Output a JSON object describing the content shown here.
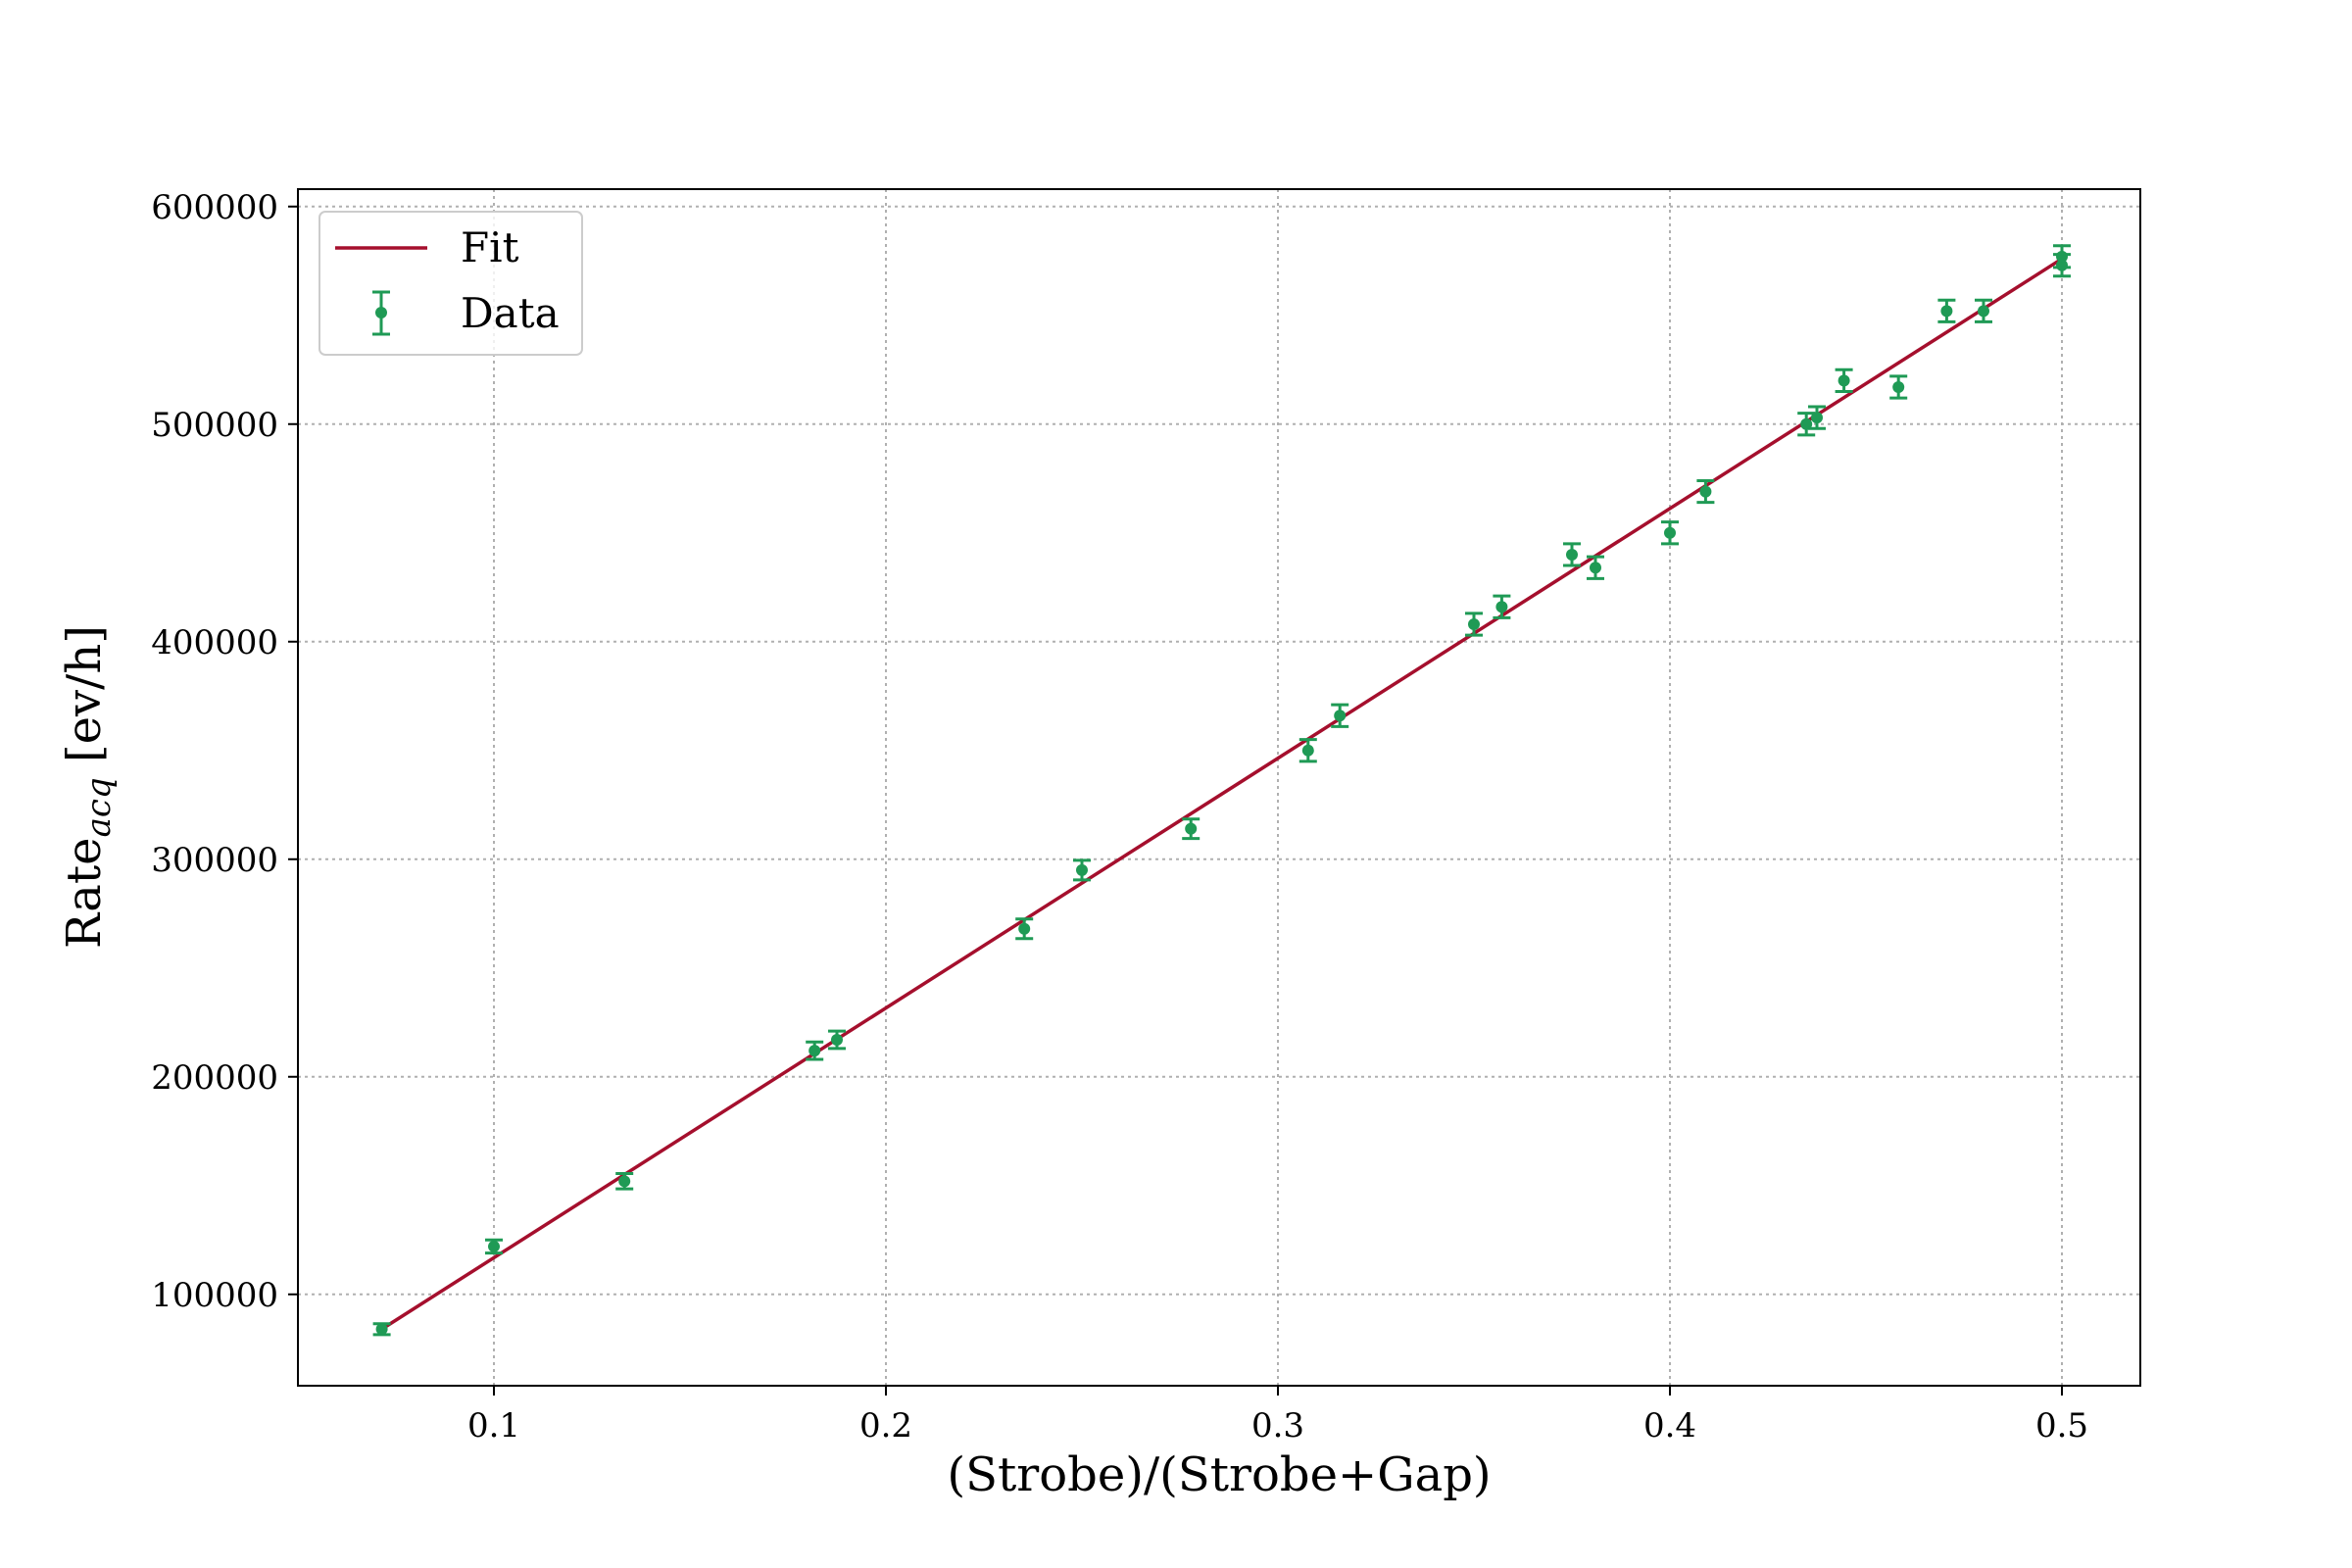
{
  "chart_data": {
    "type": "scatter",
    "xlabel": "(Strobe)/(Strobe+Gap)",
    "ylabel_main": "Rate",
    "ylabel_subscript": "acq",
    "ylabel_unit": " [ev/h]",
    "xlim": [
      0.05,
      0.52
    ],
    "ylim": [
      58000,
      608000
    ],
    "x_ticks": [
      0.1,
      0.2,
      0.3,
      0.4,
      0.5
    ],
    "x_tick_labels": [
      "0.1",
      "0.2",
      "0.3",
      "0.4",
      "0.5"
    ],
    "y_ticks": [
      100000,
      200000,
      300000,
      400000,
      500000,
      600000
    ],
    "y_tick_labels": [
      "100000",
      "200000",
      "300000",
      "400000",
      "500000",
      "600000"
    ],
    "grid": true,
    "legend_position": "top-left",
    "colors": {
      "fit": "#a50f2d",
      "data": "#1f9a55"
    },
    "series": [
      {
        "name": "Fit",
        "kind": "line",
        "x": [
          0.0714,
          0.5
        ],
        "y": [
          84000,
          576000
        ]
      },
      {
        "name": "Data",
        "kind": "errorbar",
        "points": [
          {
            "x": 0.0714,
            "y": 84000,
            "err": 2500
          },
          {
            "x": 0.1,
            "y": 122000,
            "err": 3000
          },
          {
            "x": 0.1333,
            "y": 152000,
            "err": 3500
          },
          {
            "x": 0.1818,
            "y": 212000,
            "err": 4000
          },
          {
            "x": 0.1875,
            "y": 217000,
            "err": 4000
          },
          {
            "x": 0.2353,
            "y": 268000,
            "err": 4500
          },
          {
            "x": 0.25,
            "y": 295000,
            "err": 4500
          },
          {
            "x": 0.2778,
            "y": 314000,
            "err": 4500
          },
          {
            "x": 0.3077,
            "y": 350000,
            "err": 5000
          },
          {
            "x": 0.3158,
            "y": 366000,
            "err": 5000
          },
          {
            "x": 0.35,
            "y": 408000,
            "err": 5000
          },
          {
            "x": 0.3571,
            "y": 416000,
            "err": 5000
          },
          {
            "x": 0.375,
            "y": 440000,
            "err": 5000
          },
          {
            "x": 0.381,
            "y": 434000,
            "err": 5000
          },
          {
            "x": 0.4,
            "y": 450000,
            "err": 5000
          },
          {
            "x": 0.4091,
            "y": 469000,
            "err": 5000
          },
          {
            "x": 0.4348,
            "y": 500000,
            "err": 5000
          },
          {
            "x": 0.4375,
            "y": 503000,
            "err": 5000
          },
          {
            "x": 0.4444,
            "y": 520000,
            "err": 5000
          },
          {
            "x": 0.4583,
            "y": 517000,
            "err": 5000
          },
          {
            "x": 0.4706,
            "y": 552000,
            "err": 5000
          },
          {
            "x": 0.48,
            "y": 552000,
            "err": 5000
          },
          {
            "x": 0.5,
            "y": 573000,
            "err": 5000
          },
          {
            "x": 0.5,
            "y": 577000,
            "err": 5000
          }
        ]
      }
    ]
  }
}
